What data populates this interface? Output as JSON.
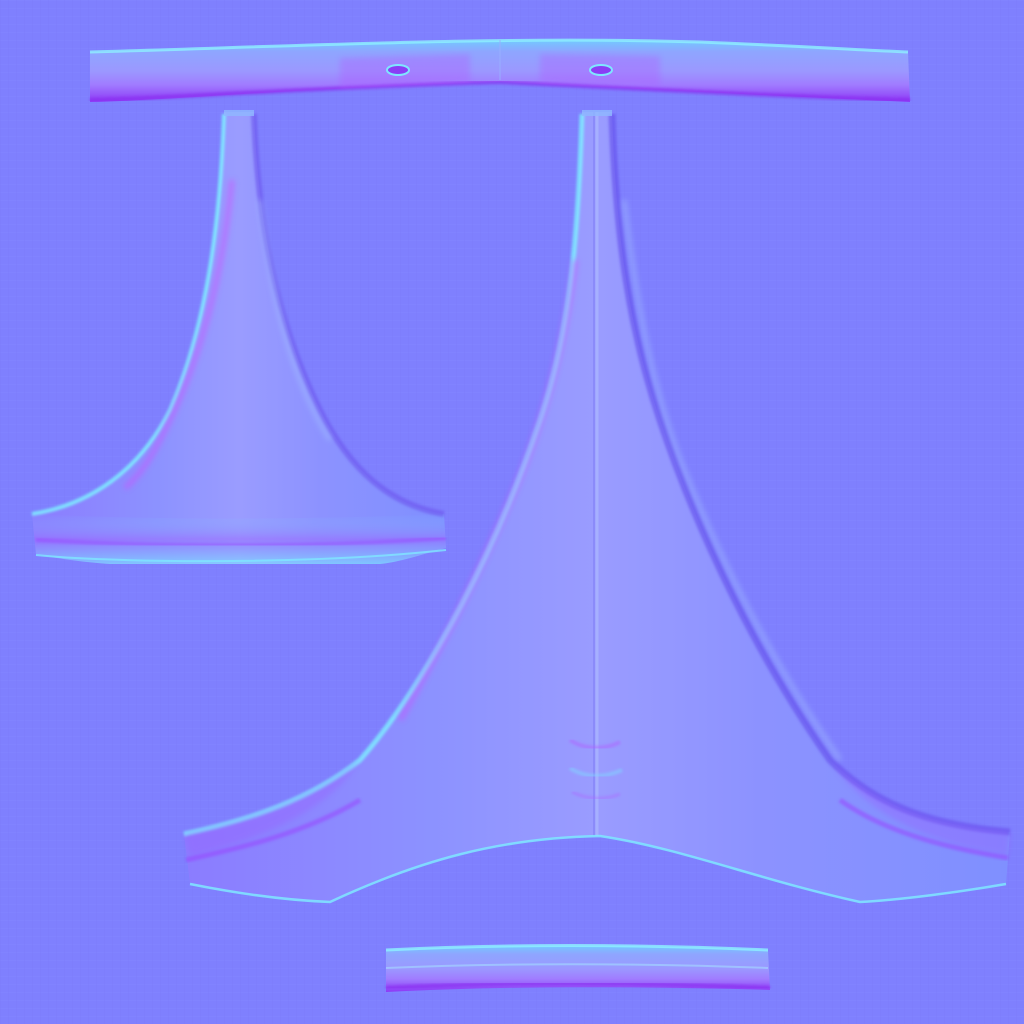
{
  "texture": {
    "kind": "tangent-space normal map",
    "flat_normal_color": "#8080ff",
    "palette": {
      "highlight_cyan": "#7fe0ff",
      "highlight_teal": "#6ff0d8",
      "shadow_purple": "#9a3cff",
      "shadow_magenta": "#c050ff",
      "panel_fill": "#8a86ff",
      "panel_fill_light": "#9a9cff"
    },
    "islands": [
      {
        "id": "top-strip",
        "description_kind": "horizontal band"
      },
      {
        "id": "small-flared-panel",
        "description_kind": "flared panel"
      },
      {
        "id": "large-flared-panel",
        "description_kind": "flared panel"
      },
      {
        "id": "bottom-strip",
        "description_kind": "horizontal band"
      }
    ]
  }
}
